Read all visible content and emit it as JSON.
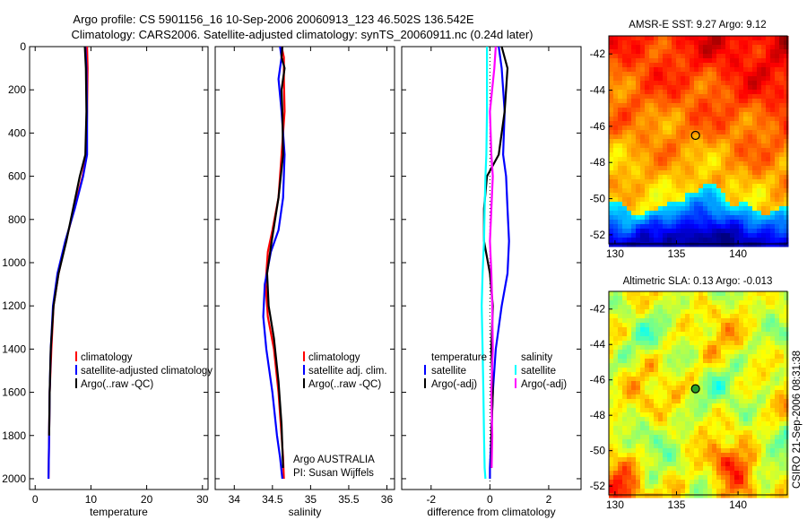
{
  "figure": {
    "title_line1": "Argo profile: CS 5901156_16 10-Sep-2006 20060913_123 46.502S 136.542E",
    "title_line2": "Climatology: CARS2006. Satellite-adjusted climatology: synTS_20060911.nc (0.24d later)",
    "credit_vertical": "CSIRO 21-Sep-2006 08:31:38",
    "attribution_line1": "Argo AUSTRALIA",
    "attribution_line2": "PI: Susan Wijffels"
  },
  "colors": {
    "climatology": "#ff0000",
    "satellite": "#0000ff",
    "argo": "#000000",
    "salinity_sat": "#00ffff",
    "salinity_argo": "#ff00ff"
  },
  "chart_data": [
    {
      "id": "temperature",
      "type": "line",
      "xlabel": "temperature",
      "xlim": [
        -1,
        31
      ],
      "ylim": [
        0,
        2050
      ],
      "y_inverted": true,
      "xticks": [
        0,
        10,
        20,
        30
      ],
      "yticks": [
        0,
        200,
        400,
        600,
        800,
        1000,
        1200,
        1400,
        1600,
        1800,
        2000
      ],
      "legend": [
        "climatology",
        "satellite-adjusted climatology",
        "Argo(..raw -QC)"
      ],
      "series": [
        {
          "name": "climatology",
          "color": "#ff0000",
          "x": [
            9.3,
            9.4,
            9.3,
            9.2,
            8.5,
            7.0,
            5.5,
            4.2,
            3.3,
            2.9,
            2.6,
            2.5,
            2.4
          ],
          "y": [
            0,
            100,
            300,
            500,
            600,
            750,
            900,
            1050,
            1200,
            1400,
            1600,
            1800,
            2000
          ]
        },
        {
          "name": "satellite-adjusted climatology",
          "color": "#0000ff",
          "x": [
            9.0,
            9.2,
            9.3,
            9.3,
            8.6,
            7.1,
            5.4,
            4.0,
            3.2,
            2.8,
            2.6,
            2.5,
            2.4
          ],
          "y": [
            0,
            100,
            300,
            500,
            600,
            750,
            900,
            1050,
            1200,
            1400,
            1600,
            1800,
            2000
          ]
        },
        {
          "name": "Argo(..raw -QC)",
          "color": "#000000",
          "x": [
            8.9,
            9.1,
            9.2,
            9.0,
            8.0,
            6.8,
            5.6,
            4.2,
            3.3,
            2.8,
            2.6,
            2.5
          ],
          "y": [
            0,
            100,
            300,
            500,
            600,
            750,
            900,
            1050,
            1200,
            1400,
            1600,
            1800
          ]
        }
      ]
    },
    {
      "id": "salinity",
      "type": "line",
      "xlabel": "salinity",
      "xlim": [
        33.75,
        36.1
      ],
      "ylim": [
        0,
        2050
      ],
      "y_inverted": true,
      "xticks": [
        34,
        34.5,
        35,
        35.5,
        36
      ],
      "legend": [
        "climatology",
        "satellite adj. clim.",
        "Argo(..raw -QC)"
      ],
      "series": [
        {
          "name": "climatology",
          "color": "#ff0000",
          "x": [
            34.62,
            34.65,
            34.65,
            34.66,
            34.62,
            34.58,
            34.5,
            34.44,
            34.41,
            34.44,
            34.52,
            34.58,
            34.62,
            34.64,
            34.65
          ],
          "y": [
            0,
            50,
            150,
            300,
            500,
            700,
            850,
            950,
            1100,
            1250,
            1400,
            1600,
            1800,
            1900,
            2000
          ]
        },
        {
          "name": "satellite adj. clim.",
          "color": "#0000ff",
          "x": [
            34.6,
            34.62,
            34.6,
            34.58,
            34.62,
            34.66,
            34.64,
            34.58,
            34.48,
            34.4,
            34.38,
            34.42,
            34.5,
            34.56,
            34.6,
            34.63
          ],
          "y": [
            0,
            50,
            100,
            150,
            300,
            500,
            700,
            850,
            950,
            1100,
            1250,
            1400,
            1600,
            1800,
            1900,
            2000
          ]
        },
        {
          "name": "Argo(..raw -QC)",
          "color": "#000000",
          "x": [
            34.63,
            34.62,
            34.66,
            34.62,
            34.63,
            34.64,
            34.58,
            34.49,
            34.43,
            34.45,
            34.52,
            34.58,
            34.62,
            34.64
          ],
          "y": [
            0,
            50,
            100,
            200,
            300,
            500,
            700,
            900,
            1050,
            1200,
            1350,
            1550,
            1750,
            1950
          ]
        }
      ]
    },
    {
      "id": "difference",
      "type": "line",
      "xlabel": "difference from climatology",
      "xlim": [
        -3,
        3.1
      ],
      "ylim": [
        0,
        2050
      ],
      "y_inverted": true,
      "xticks": [
        -2,
        0,
        2
      ],
      "legend_titles": [
        "temperature",
        "salinity"
      ],
      "legend": [
        "satellite",
        "Argo(-adj)",
        "satellite",
        "Argo(-adj)"
      ],
      "series": [
        {
          "name": "temperature satellite",
          "color": "#0000ff",
          "x": [
            0.3,
            0.4,
            0.5,
            0.45,
            0.55,
            0.6,
            0.65,
            0.6,
            0.4,
            0.2,
            0.1,
            0.05,
            0.0,
            0.0
          ],
          "y": [
            0,
            100,
            300,
            500,
            600,
            750,
            900,
            1050,
            1200,
            1400,
            1600,
            1800,
            1950,
            2000
          ]
        },
        {
          "name": "temperature Argo(-adj)",
          "color": "#000000",
          "x": [
            0.4,
            0.6,
            0.5,
            0.3,
            -0.1,
            -0.2,
            -0.2,
            0.0,
            0.1,
            0.05,
            0.1,
            0.05,
            0.05
          ],
          "y": [
            0,
            100,
            300,
            500,
            600,
            750,
            900,
            1050,
            1200,
            1400,
            1600,
            1800,
            1950
          ]
        },
        {
          "name": "salinity satellite",
          "color": "#00ffff",
          "x": [
            -0.1,
            -0.1,
            -0.1,
            -0.12,
            -0.15,
            -0.18,
            -0.2,
            -0.25,
            -0.28,
            -0.25,
            -0.22,
            -0.2,
            -0.18,
            -0.15
          ],
          "y": [
            0,
            100,
            300,
            500,
            600,
            750,
            900,
            1050,
            1200,
            1400,
            1600,
            1800,
            1950,
            2000
          ]
        },
        {
          "name": "salinity Argo(-adj)",
          "color": "#ff00ff",
          "x": [
            0.2,
            0.15,
            0.0,
            0.05,
            0.1,
            0.05,
            0.0,
            0.05,
            0.08,
            0.1,
            0.05,
            0.08,
            0.06
          ],
          "y": [
            0,
            100,
            300,
            500,
            600,
            750,
            900,
            1050,
            1200,
            1400,
            1600,
            1800,
            1950
          ]
        }
      ]
    },
    {
      "id": "sst_map",
      "type": "heatmap",
      "title": "AMSR-E SST: 9.27 Argo: 9.12",
      "xlim": [
        129.5,
        144
      ],
      "ylim": [
        -52.5,
        -41
      ],
      "xticks": [
        130,
        135,
        140
      ],
      "yticks": [
        -42,
        -44,
        -46,
        -48,
        -50,
        -52
      ],
      "marker": {
        "lon": 136.542,
        "lat": -46.502
      }
    },
    {
      "id": "sla_map",
      "type": "heatmap",
      "title": "Altimetric SLA: 0.13 Argo: -0.013",
      "xlim": [
        129.5,
        144
      ],
      "ylim": [
        -52.5,
        -41
      ],
      "xticks": [
        130,
        135,
        140
      ],
      "yticks": [
        -42,
        -44,
        -46,
        -48,
        -50,
        -52
      ],
      "marker": {
        "lon": 136.542,
        "lat": -46.502
      }
    }
  ]
}
